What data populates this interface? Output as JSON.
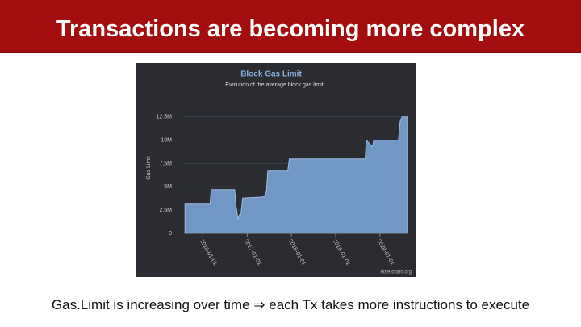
{
  "title": "Transactions are becoming more complex",
  "caption": "Gas.Limit is increasing over time ⇒ each Tx takes more instructions to execute",
  "chart_data": {
    "type": "area",
    "title": "Block Gas Limit",
    "subtitle": "Evolution of the average block gas limit",
    "y_label": "Gas Limit",
    "credit": "etherchain.org",
    "x": [
      "2015-08-07",
      "2016-03-01",
      "2016-03-10",
      "2016-09-20",
      "2016-10-01",
      "2016-10-18",
      "2016-10-28",
      "2016-11-10",
      "2016-11-25",
      "2017-05-01",
      "2017-06-01",
      "2017-06-10",
      "2017-06-20",
      "2017-12-01",
      "2017-12-15",
      "2019-09-01",
      "2019-09-10",
      "2019-11-01",
      "2019-11-10",
      "2020-06-01",
      "2020-06-15",
      "2020-07-01",
      "2020-08-15"
    ],
    "series": [
      {
        "name": "Gas Limit",
        "color": "#7197c4",
        "values": [
          3140000,
          3140000,
          4700000,
          4700000,
          3000000,
          1500000,
          2000000,
          2000000,
          3800000,
          3900000,
          4000000,
          4700000,
          6700000,
          6700000,
          8000000,
          8000000,
          10000000,
          9300000,
          10000000,
          10000000,
          12000000,
          12500000,
          12500000
        ]
      }
    ],
    "xlim": [
      "2015-07-30",
      "2020-08-15"
    ],
    "xticks": [
      "2016-01-01",
      "2017-01-01",
      "2018-01-01",
      "2019-01-01",
      "2020-01-01"
    ],
    "ylim": [
      0,
      13000000
    ],
    "yticks": [
      0,
      {
        "value": 2500000,
        "label": "2.5M"
      },
      {
        "value": 5000000,
        "label": "5M"
      },
      {
        "value": 7500000,
        "label": "7.5M"
      },
      {
        "value": 10000000,
        "label": "10M"
      },
      {
        "value": 12500000,
        "label": "12.5M"
      }
    ],
    "grid": true
  }
}
